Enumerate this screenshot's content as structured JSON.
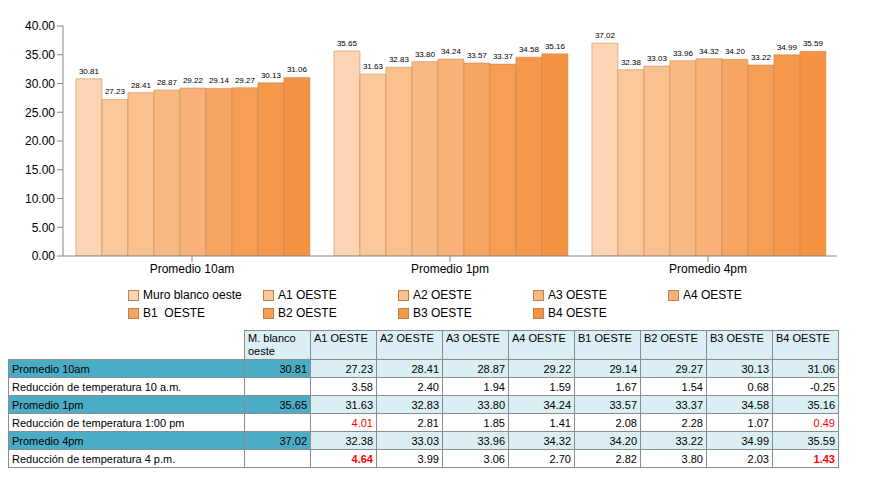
{
  "chart_data": {
    "type": "bar",
    "categories": [
      "Promedio 10am",
      "Promedio 1pm",
      "Promedio 4pm"
    ],
    "series": [
      {
        "name": "Muro blanco oeste",
        "color": "#fcd5b4",
        "values": [
          30.81,
          35.65,
          37.02
        ],
        "value_labels": [
          "30.81",
          "35.65",
          "37.02"
        ]
      },
      {
        "name": "A1 OESTE",
        "color": "#fbc89c",
        "values": [
          27.23,
          31.63,
          32.38
        ],
        "value_labels": [
          "27.23",
          "31.63",
          "32.38"
        ]
      },
      {
        "name": "A2 OESTE",
        "color": "#fac08e",
        "values": [
          28.41,
          32.83,
          33.03
        ],
        "value_labels": [
          "28.41",
          "32.83",
          "33.03"
        ]
      },
      {
        "name": "A3 OESTE",
        "color": "#f9b982",
        "values": [
          28.87,
          33.8,
          33.96
        ],
        "value_labels": [
          "28.87",
          "33.80",
          "33.96"
        ]
      },
      {
        "name": "A4 OESTE",
        "color": "#f8b277",
        "values": [
          29.22,
          34.24,
          34.32
        ],
        "value_labels": [
          "29.22",
          "34.24",
          "34.32"
        ]
      },
      {
        "name": "B1  OESTE",
        "color": "#f7a562",
        "values": [
          29.14,
          33.57,
          34.2
        ],
        "value_labels": [
          "29.14",
          "33.57",
          "34.20"
        ]
      },
      {
        "name": "B2 OESTE",
        "color": "#f79e55",
        "values": [
          29.27,
          33.37,
          33.22
        ],
        "value_labels": [
          "29.27",
          "33.37",
          "33.22"
        ]
      },
      {
        "name": "B3 OESTE",
        "color": "#f6984b",
        "values": [
          30.13,
          34.58,
          34.99
        ],
        "value_labels": [
          "30.13",
          "34.58",
          "34.99"
        ]
      },
      {
        "name": "B4 OESTE",
        "color": "#f59342",
        "values": [
          31.06,
          35.16,
          35.59
        ],
        "value_labels": [
          "31.06",
          "35.16",
          "35.59"
        ]
      }
    ],
    "ylim": [
      0,
      40
    ],
    "yticks": [
      {
        "value": 0,
        "label": "0.00"
      },
      {
        "value": 5,
        "label": "5.00"
      },
      {
        "value": 10,
        "label": "10.00"
      },
      {
        "value": 15,
        "label": "15.00"
      },
      {
        "value": 20,
        "label": "20.00"
      },
      {
        "value": 25,
        "label": "25.00"
      },
      {
        "value": 30,
        "label": "30.00"
      },
      {
        "value": 35,
        "label": "35.00"
      },
      {
        "value": 40,
        "label": "40.00"
      }
    ],
    "grid": false,
    "data_labels": true,
    "legend": "bottom"
  },
  "table": {
    "header": [
      "M. blanco oeste",
      "A1 OESTE",
      "A2 OESTE",
      "A3 OESTE",
      "A4 OESTE",
      "B1 OESTE",
      "B2 OESTE",
      "B3 OESTE",
      "B4 OESTE"
    ],
    "rows": [
      {
        "label": "Promedio 10am",
        "cells": [
          "30.81",
          "27.23",
          "28.41",
          "28.87",
          "29.22",
          "29.14",
          "29.27",
          "30.13",
          "31.06"
        ]
      },
      {
        "label": "Reducción de temperatura 10 a.m.",
        "cells": [
          null,
          "3.58",
          "2.40",
          "1.94",
          "1.59",
          "1.67",
          "1.54",
          "0.68",
          "-0.25"
        ]
      },
      {
        "label": "Promedio 1pm",
        "cells": [
          "35.65",
          "31.63",
          "32.83",
          "33.80",
          "34.24",
          "33.57",
          "33.37",
          "34.58",
          "35.16"
        ]
      },
      {
        "label": "Reducción de temperatura 1:00 pm",
        "cells": [
          null,
          {
            "text": "4.01",
            "color": "#ff0000"
          },
          "2.81",
          "1.85",
          "1.41",
          "2.08",
          "2.28",
          "1.07",
          {
            "text": "0.49",
            "color": "#ff0000"
          }
        ]
      },
      {
        "label": "Promedio 4pm",
        "cells": [
          "37.02",
          "32.38",
          "33.03",
          "33.96",
          "34.32",
          "34.20",
          "33.22",
          "34.99",
          "35.59"
        ]
      },
      {
        "label": "Reducción de temperatura 4 p.m.",
        "cells": [
          null,
          {
            "text": "4.64",
            "color": "#ff0000",
            "bold": true
          },
          "3.99",
          "3.06",
          "2.70",
          "2.82",
          "3.80",
          "2.03",
          {
            "text": "1.43",
            "color": "#ff0000",
            "bold": true
          }
        ]
      }
    ]
  }
}
